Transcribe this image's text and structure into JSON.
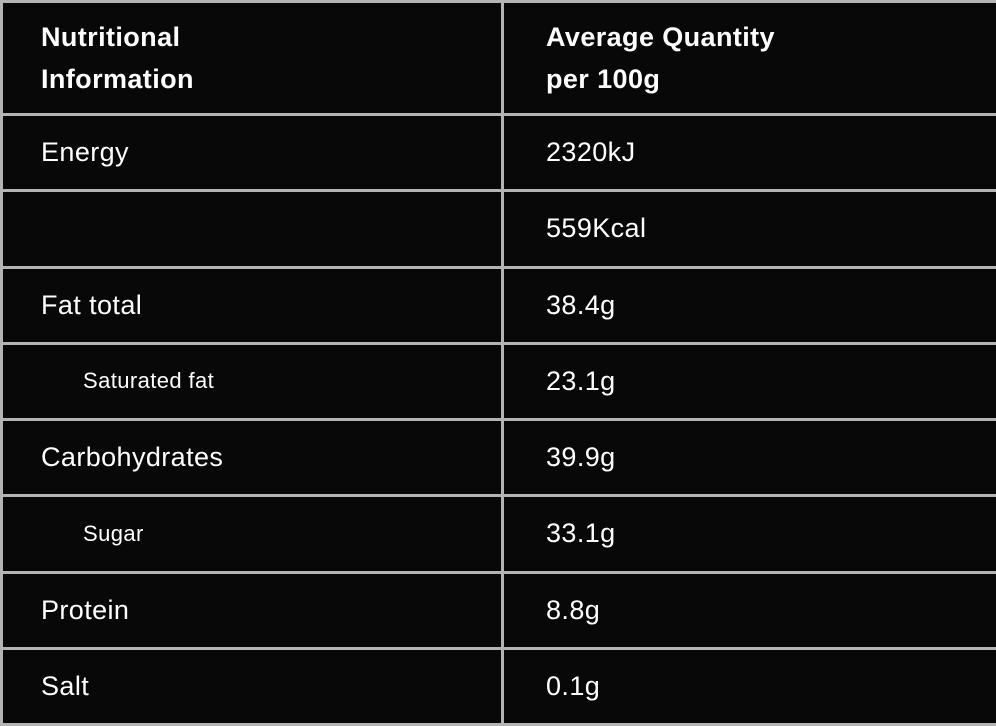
{
  "table": {
    "colors": {
      "background": "#080808",
      "grid_line": "#b4b4b4",
      "text": "#ffffff"
    },
    "header": {
      "col1": "Nutritional\nInformation",
      "col2": "Average Quantity\nper 100g"
    },
    "rows": [
      {
        "label": "Energy",
        "value": "2320kJ",
        "indent": false
      },
      {
        "label": "",
        "value": "559Kcal",
        "indent": false
      },
      {
        "label": "Fat total",
        "value": "38.4g",
        "indent": false
      },
      {
        "label": "Saturated fat",
        "value": "23.1g",
        "indent": true
      },
      {
        "label": "Carbohydrates",
        "value": "39.9g",
        "indent": false
      },
      {
        "label": "Sugar",
        "value": "33.1g",
        "indent": true
      },
      {
        "label": "Protein",
        "value": "8.8g",
        "indent": false
      },
      {
        "label": "Salt",
        "value": "0.1g",
        "indent": false
      }
    ]
  }
}
